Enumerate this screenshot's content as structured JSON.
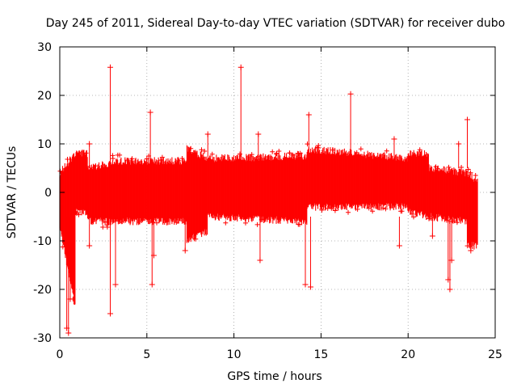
{
  "chart_data": {
    "type": "scatter",
    "title": "Day 245 of 2011, Sidereal Day-to-day VTEC variation (SDTVAR) for receiver dubo",
    "xlabel": "GPS time / hours",
    "ylabel": "SDTVAR / TECUs",
    "xlim": [
      0,
      25
    ],
    "ylim": [
      -30,
      30
    ],
    "xticks": [
      0,
      5,
      10,
      15,
      20,
      25
    ],
    "yticks": [
      -30,
      -20,
      -10,
      0,
      10,
      20,
      30
    ],
    "grid": true,
    "marker": "+",
    "series_color": "#ff0000",
    "band": {
      "description": "dense envelope of points (approximate upper and lower bounds in TECU)",
      "segments": [
        {
          "x": [
            0.0,
            0.9
          ],
          "upper": [
            4,
            8
          ],
          "lower": [
            -7,
            -24
          ]
        },
        {
          "x": [
            0.9,
            1.6
          ],
          "upper": [
            8,
            8
          ],
          "lower": [
            -4,
            -4
          ]
        },
        {
          "x": [
            1.6,
            3.0
          ],
          "upper": [
            5,
            6
          ],
          "lower": [
            -6,
            -6
          ]
        },
        {
          "x": [
            3.0,
            7.3
          ],
          "upper": [
            6.5,
            6.5
          ],
          "lower": [
            -6,
            -6
          ]
        },
        {
          "x": [
            7.3,
            8.5
          ],
          "upper": [
            9,
            7
          ],
          "lower": [
            -10,
            -8
          ]
        },
        {
          "x": [
            8.5,
            14.2
          ],
          "upper": [
            7,
            7.5
          ],
          "lower": [
            -5,
            -6
          ]
        },
        {
          "x": [
            14.2,
            20.0
          ],
          "upper": [
            9,
            7
          ],
          "lower": [
            -3,
            -3
          ]
        },
        {
          "x": [
            20.0,
            21.2
          ],
          "upper": [
            8,
            8
          ],
          "lower": [
            -4,
            -5
          ]
        },
        {
          "x": [
            21.2,
            23.4
          ],
          "upper": [
            5,
            4
          ],
          "lower": [
            -5,
            -6
          ]
        },
        {
          "x": [
            23.4,
            24.0
          ],
          "upper": [
            4,
            2
          ],
          "lower": [
            -11,
            -11
          ]
        }
      ]
    },
    "spikes": [
      {
        "x": 0.4,
        "y": -28
      },
      {
        "x": 0.5,
        "y": -29
      },
      {
        "x": 0.6,
        "y": -22
      },
      {
        "x": 0.3,
        "y": -10
      },
      {
        "x": 1.7,
        "y": 10
      },
      {
        "x": 1.7,
        "y": -11
      },
      {
        "x": 2.9,
        "y": 25.8
      },
      {
        "x": 2.9,
        "y": -25
      },
      {
        "x": 3.2,
        "y": -19
      },
      {
        "x": 5.2,
        "y": 16.5
      },
      {
        "x": 5.3,
        "y": -19
      },
      {
        "x": 5.4,
        "y": -13
      },
      {
        "x": 7.2,
        "y": -12
      },
      {
        "x": 8.5,
        "y": 12
      },
      {
        "x": 10.4,
        "y": 25.8
      },
      {
        "x": 11.4,
        "y": 12
      },
      {
        "x": 11.5,
        "y": -14
      },
      {
        "x": 14.1,
        "y": -19
      },
      {
        "x": 14.3,
        "y": 16
      },
      {
        "x": 14.4,
        "y": -19.5
      },
      {
        "x": 16.7,
        "y": 20.3
      },
      {
        "x": 19.2,
        "y": 11
      },
      {
        "x": 19.5,
        "y": -11
      },
      {
        "x": 21.4,
        "y": -9
      },
      {
        "x": 22.3,
        "y": -18
      },
      {
        "x": 22.4,
        "y": -20
      },
      {
        "x": 22.5,
        "y": -14
      },
      {
        "x": 22.9,
        "y": 10
      },
      {
        "x": 23.4,
        "y": 15
      },
      {
        "x": 23.6,
        "y": -12
      }
    ]
  }
}
